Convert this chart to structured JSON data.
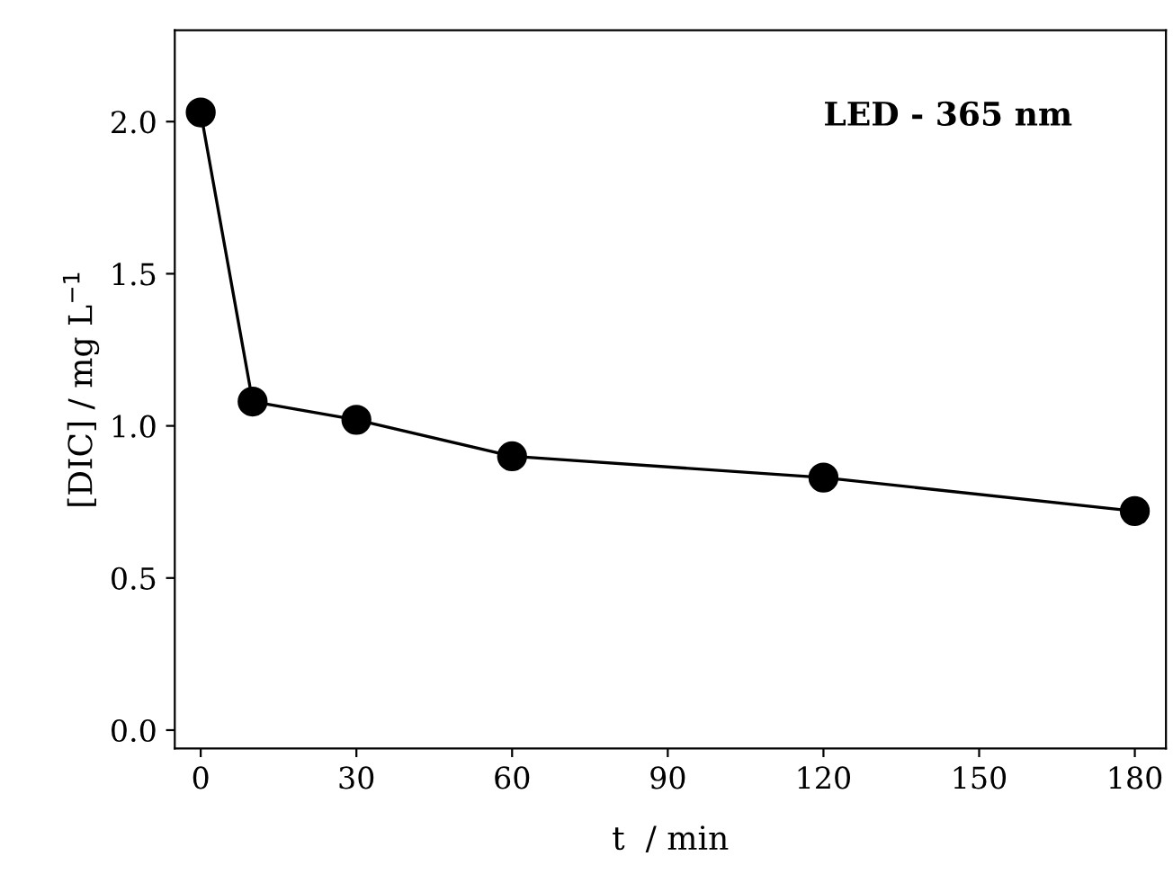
{
  "chart_data": {
    "type": "line",
    "xlabel": "t  / min",
    "ylabel": "[DIC] / mg L$^{−1}$",
    "annotations": [
      "LED - 365 nm"
    ],
    "x": [
      0,
      10,
      30,
      60,
      120,
      180
    ],
    "series": [
      {
        "color": "#000000",
        "values": [
          2.03,
          1.08,
          1.02,
          0.9,
          0.83,
          0.72
        ]
      }
    ],
    "marker": "circle",
    "line_style": "solid",
    "grid": false,
    "legend": false,
    "xlim": [
      -5,
      186
    ],
    "ylim": [
      -0.06,
      2.3
    ],
    "xticks": [
      0,
      30,
      60,
      90,
      120,
      150,
      180
    ],
    "yticks": [
      {
        "value": 0,
        "label": "0.0"
      },
      {
        "value": 0.5,
        "label": "0.5"
      },
      {
        "value": 1.0,
        "label": "1.0"
      },
      {
        "value": 1.5,
        "label": "1.5"
      },
      {
        "value": 2.0,
        "label": "2.0"
      }
    ]
  }
}
